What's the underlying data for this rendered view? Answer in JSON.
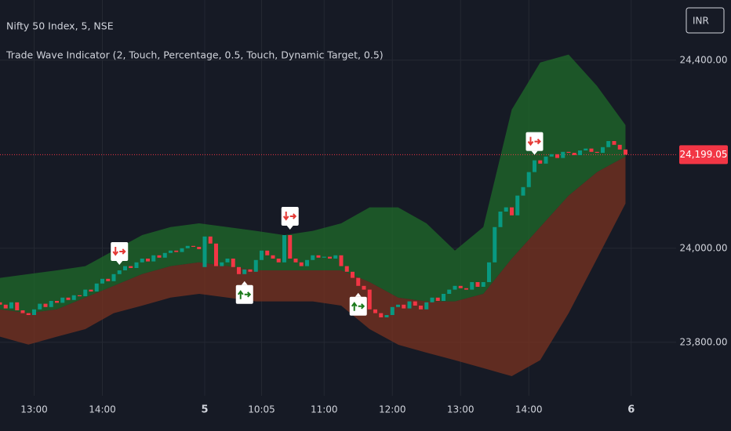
{
  "chart_data": {
    "type": "candlestick",
    "title": "Nifty 50 Index, 5, NSE",
    "subtitle": "Trade Wave Indicator (2, Touch, Percentage, 0.5, Touch, Dynamic Target, 0.5)",
    "currency": "INR",
    "up_color": "#089981",
    "down_color": "#f23645",
    "open": [
      23885,
      23880,
      23872,
      23885,
      23868,
      23862,
      23858,
      23870,
      23882,
      23875,
      23888,
      23884,
      23895,
      23890,
      23900,
      23898,
      23912,
      23908,
      23925,
      23935,
      23930,
      23945,
      23953,
      23962,
      23958,
      23970,
      23978,
      23972,
      23985,
      23980,
      23990,
      23995,
      23992,
      24000,
      24005,
      24003,
      23960,
      24025,
      24010,
      23962,
      23970,
      23978,
      23960,
      23945,
      23955,
      23950,
      23975,
      23995,
      23985,
      23978,
      23970,
      24028,
      23978,
      23970,
      23962,
      23975,
      23985,
      23980,
      23982,
      23978,
      23985,
      23962,
      23950,
      23937,
      23920,
      23912,
      23870,
      23862,
      23853,
      23858,
      23875,
      23880,
      23872,
      23887,
      23878,
      23870,
      23885,
      23895,
      23888,
      23903,
      23912,
      23920,
      23915,
      23912,
      23928,
      23918,
      23928,
      23970,
      24045,
      24078,
      24087,
      24070,
      24112,
      24130,
      24162,
      24187,
      24180,
      24195,
      24200,
      24192,
      24205,
      24203,
      24198,
      24208,
      24212,
      24205,
      24203,
      24215,
      24228,
      24220,
      24210
    ],
    "close": [
      23880,
      23872,
      23885,
      23868,
      23862,
      23858,
      23870,
      23882,
      23875,
      23888,
      23884,
      23895,
      23890,
      23900,
      23898,
      23912,
      23908,
      23925,
      23935,
      23930,
      23945,
      23953,
      23962,
      23958,
      23970,
      23978,
      23972,
      23985,
      23980,
      23990,
      23995,
      23992,
      24000,
      24005,
      24003,
      23998,
      24025,
      24010,
      23962,
      23970,
      23978,
      23960,
      23945,
      23955,
      23950,
      23975,
      23995,
      23985,
      23978,
      23970,
      24028,
      23978,
      23970,
      23962,
      23975,
      23985,
      23980,
      23982,
      23978,
      23985,
      23962,
      23950,
      23937,
      23920,
      23912,
      23870,
      23862,
      23853,
      23858,
      23875,
      23880,
      23872,
      23887,
      23878,
      23870,
      23885,
      23895,
      23888,
      23903,
      23912,
      23920,
      23915,
      23912,
      23928,
      23918,
      23928,
      23970,
      24045,
      24078,
      24087,
      24070,
      24112,
      24130,
      24162,
      24187,
      24180,
      24195,
      24200,
      24192,
      24205,
      24203,
      24198,
      24208,
      24212,
      24205,
      24203,
      24215,
      24228,
      24220,
      24210,
      24199
    ],
    "bands": {
      "x": [
        0,
        5,
        10,
        15,
        20,
        25,
        30,
        35,
        40,
        45,
        50,
        55,
        60,
        65,
        70,
        75,
        80,
        85,
        90,
        95,
        100,
        105,
        110
      ],
      "upper": [
        23937,
        23945,
        23953,
        23962,
        23995,
        24028,
        24045,
        24053,
        24045,
        24037,
        24028,
        24037,
        24053,
        24087,
        24087,
        24053,
        23995,
        24045,
        24295,
        24395,
        24412,
        24345,
        24262
      ],
      "middle": [
        23870,
        23862,
        23870,
        23895,
        23920,
        23945,
        23962,
        23970,
        23962,
        23953,
        23953,
        23953,
        23953,
        23928,
        23895,
        23887,
        23887,
        23903,
        23978,
        24045,
        24112,
        24162,
        24195
      ],
      "lower": [
        23812,
        23795,
        23812,
        23828,
        23862,
        23878,
        23895,
        23903,
        23895,
        23887,
        23887,
        23887,
        23878,
        23828,
        23795,
        23778,
        23762,
        23745,
        23728,
        23762,
        23862,
        23978,
        24095
      ],
      "upper_color": "#1f6b2a",
      "lower_color": "#7a3320"
    },
    "signals": [
      {
        "x": 21,
        "type": "sell"
      },
      {
        "x": 43,
        "type": "buy"
      },
      {
        "x": 51,
        "type": "sell"
      },
      {
        "x": 63,
        "type": "buy"
      },
      {
        "x": 94,
        "type": "sell"
      }
    ],
    "last_price": {
      "value": 24199.05,
      "label": "24,199.05"
    },
    "xlim": [
      0,
      118.9
    ],
    "ylim": [
      23678,
      24528
    ],
    "yticks": [
      {
        "value": 23800,
        "label": "23,800.00"
      },
      {
        "value": 24000,
        "label": "24,000.00"
      },
      {
        "value": 24400,
        "label": "24,400.00"
      }
    ],
    "xticks": [
      {
        "value": 6,
        "label": "13:00"
      },
      {
        "value": 18,
        "label": "14:00"
      },
      {
        "value": 36,
        "label": "5"
      },
      {
        "value": 46,
        "label": "10:05"
      },
      {
        "value": 57,
        "label": "11:00"
      },
      {
        "value": 69,
        "label": "12:00"
      },
      {
        "value": 81,
        "label": "13:00"
      },
      {
        "value": 93,
        "label": "14:00"
      },
      {
        "value": 111,
        "label": "6"
      }
    ],
    "grid": true
  }
}
